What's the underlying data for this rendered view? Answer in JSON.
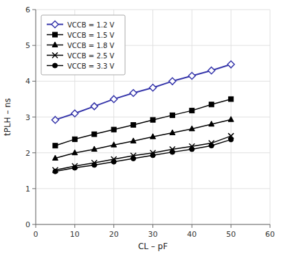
{
  "chart_data": {
    "type": "line",
    "xlabel": "CL – pF",
    "ylabel": "tPLH – ns",
    "x": [
      5,
      10,
      15,
      20,
      25,
      30,
      35,
      40,
      45,
      50
    ],
    "series": [
      {
        "name": "VCCB = 1.2 V",
        "color": "#3535aa",
        "marker": "diamond",
        "values": [
          2.92,
          3.1,
          3.3,
          3.5,
          3.67,
          3.82,
          4.0,
          4.15,
          4.3,
          4.47
        ]
      },
      {
        "name": "VCCB = 1.5 V",
        "color": "#000000",
        "marker": "square",
        "values": [
          2.2,
          2.38,
          2.52,
          2.65,
          2.78,
          2.92,
          3.05,
          3.18,
          3.35,
          3.5
        ]
      },
      {
        "name": "VCCB = 1.8 V",
        "color": "#000000",
        "marker": "triangle",
        "values": [
          1.85,
          2.0,
          2.1,
          2.22,
          2.33,
          2.45,
          2.56,
          2.67,
          2.8,
          2.93
        ]
      },
      {
        "name": "VCCB = 2.5 V",
        "color": "#000000",
        "marker": "x",
        "values": [
          1.52,
          1.63,
          1.72,
          1.82,
          1.92,
          2.0,
          2.1,
          2.18,
          2.27,
          2.47
        ]
      },
      {
        "name": "VCCB = 3.3 V",
        "color": "#000000",
        "marker": "circle",
        "values": [
          1.48,
          1.58,
          1.66,
          1.75,
          1.84,
          1.93,
          2.02,
          2.1,
          2.2,
          2.37
        ]
      }
    ],
    "xlim": [
      0,
      60
    ],
    "ylim": [
      0,
      6
    ],
    "xticks": [
      0,
      10,
      20,
      30,
      40,
      50,
      60
    ],
    "yticks": [
      0,
      1,
      2,
      3,
      4,
      5,
      6
    ],
    "grid": true,
    "legend": "upper left"
  }
}
